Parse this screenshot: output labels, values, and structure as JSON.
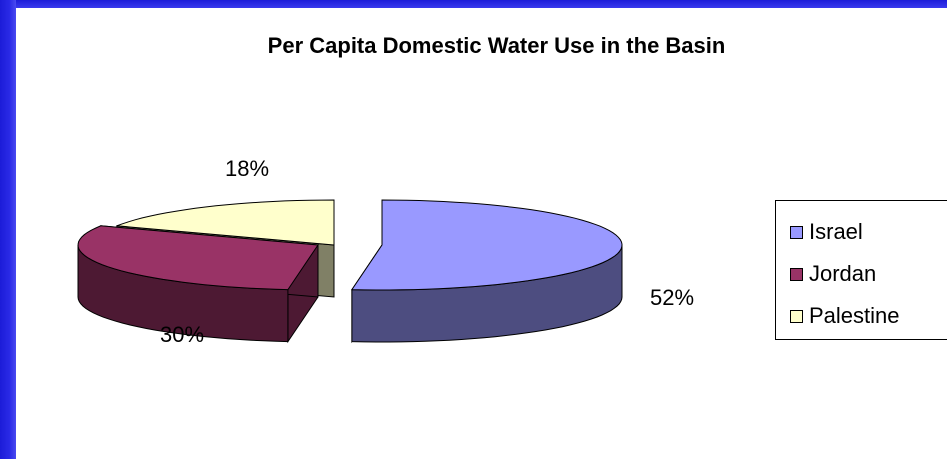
{
  "chart_data": {
    "type": "pie",
    "title": "Per Capita Domestic Water Use in the Basin",
    "categories": [
      "Israel",
      "Jordan",
      "Palestine"
    ],
    "values": [
      52,
      30,
      18
    ],
    "labels": [
      "52%",
      "30%",
      "18%"
    ],
    "colors": {
      "Israel": {
        "top": "#9999ff",
        "side": "#4d4d80"
      },
      "Jordan": {
        "top": "#993366",
        "side": "#4d1933"
      },
      "Palestine": {
        "top": "#ffffcc",
        "side": "#808066"
      }
    },
    "legend_position": "right",
    "style": "3d exploded pie"
  }
}
